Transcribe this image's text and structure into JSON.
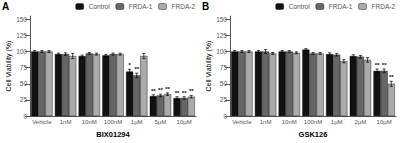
{
  "chart_data": [
    {
      "type": "bar",
      "annotation": "A",
      "xlabel": "BIX01294",
      "ylabel": "Cell Viability (%)",
      "categories": [
        "Vehicle",
        "1nM",
        "10nM",
        "100nM",
        "1μM",
        "5μM",
        "10μM"
      ],
      "series": [
        {
          "name": "Control",
          "color": "#111111",
          "values": [
            100,
            96,
            93,
            94,
            69,
            31,
            28
          ],
          "errors": [
            1.5,
            1.5,
            1.5,
            1.5,
            3.5,
            2.0,
            2.0
          ],
          "sig_labels": [
            null,
            null,
            null,
            null,
            "*",
            "**",
            "**"
          ]
        },
        {
          "name": "FRDA-1",
          "color": "#666666",
          "values": [
            100,
            96,
            97,
            96,
            63,
            32,
            28
          ],
          "errors": [
            1.5,
            2.0,
            1.5,
            1.5,
            3.5,
            2.0,
            2.0
          ],
          "sig_labels": [
            null,
            null,
            null,
            null,
            "**",
            "**",
            "**"
          ]
        },
        {
          "name": "FRDA-2",
          "color": "#aaaaaa",
          "values": [
            100,
            93,
            96,
            96,
            93,
            34,
            30
          ],
          "errors": [
            1.5,
            4.0,
            1.5,
            1.5,
            4.0,
            2.0,
            2.0
          ],
          "sig_labels": [
            null,
            null,
            null,
            null,
            null,
            "**",
            "**"
          ]
        }
      ],
      "ylim": [
        0,
        155
      ],
      "yticks": [
        0,
        25,
        50,
        75,
        100,
        125,
        150
      ],
      "legend": "upper right",
      "grid": false
    },
    {
      "type": "bar",
      "annotation": "B",
      "xlabel": "GSK126",
      "ylabel": "Cell Viability (%)",
      "categories": [
        "Vehicle",
        "1nM",
        "10nM",
        "100nM",
        "1μM",
        "2μM",
        "10μM"
      ],
      "series": [
        {
          "name": "Control",
          "color": "#111111",
          "values": [
            100,
            100,
            100,
            103,
            96,
            93,
            70
          ],
          "errors": [
            1.5,
            1.5,
            1.5,
            1.5,
            2.0,
            2.0,
            3.0
          ],
          "sig_labels": [
            null,
            null,
            null,
            null,
            null,
            null,
            "**"
          ]
        },
        {
          "name": "FRDA-1",
          "color": "#666666",
          "values": [
            100,
            100,
            100,
            97,
            95,
            92,
            70
          ],
          "errors": [
            1.5,
            3.0,
            1.5,
            1.5,
            2.0,
            2.0,
            3.0
          ],
          "sig_labels": [
            null,
            null,
            null,
            null,
            null,
            null,
            "**"
          ]
        },
        {
          "name": "FRDA-2",
          "color": "#aaaaaa",
          "values": [
            100,
            97,
            98,
            97,
            85,
            87,
            50
          ],
          "errors": [
            1.5,
            1.5,
            1.5,
            1.5,
            2.5,
            3.5,
            4.0
          ],
          "sig_labels": [
            null,
            null,
            null,
            null,
            null,
            null,
            "**"
          ]
        }
      ],
      "ylim": [
        0,
        155
      ],
      "yticks": [
        0,
        25,
        50,
        75,
        100,
        125,
        150
      ],
      "legend": "upper right",
      "grid": false
    }
  ]
}
